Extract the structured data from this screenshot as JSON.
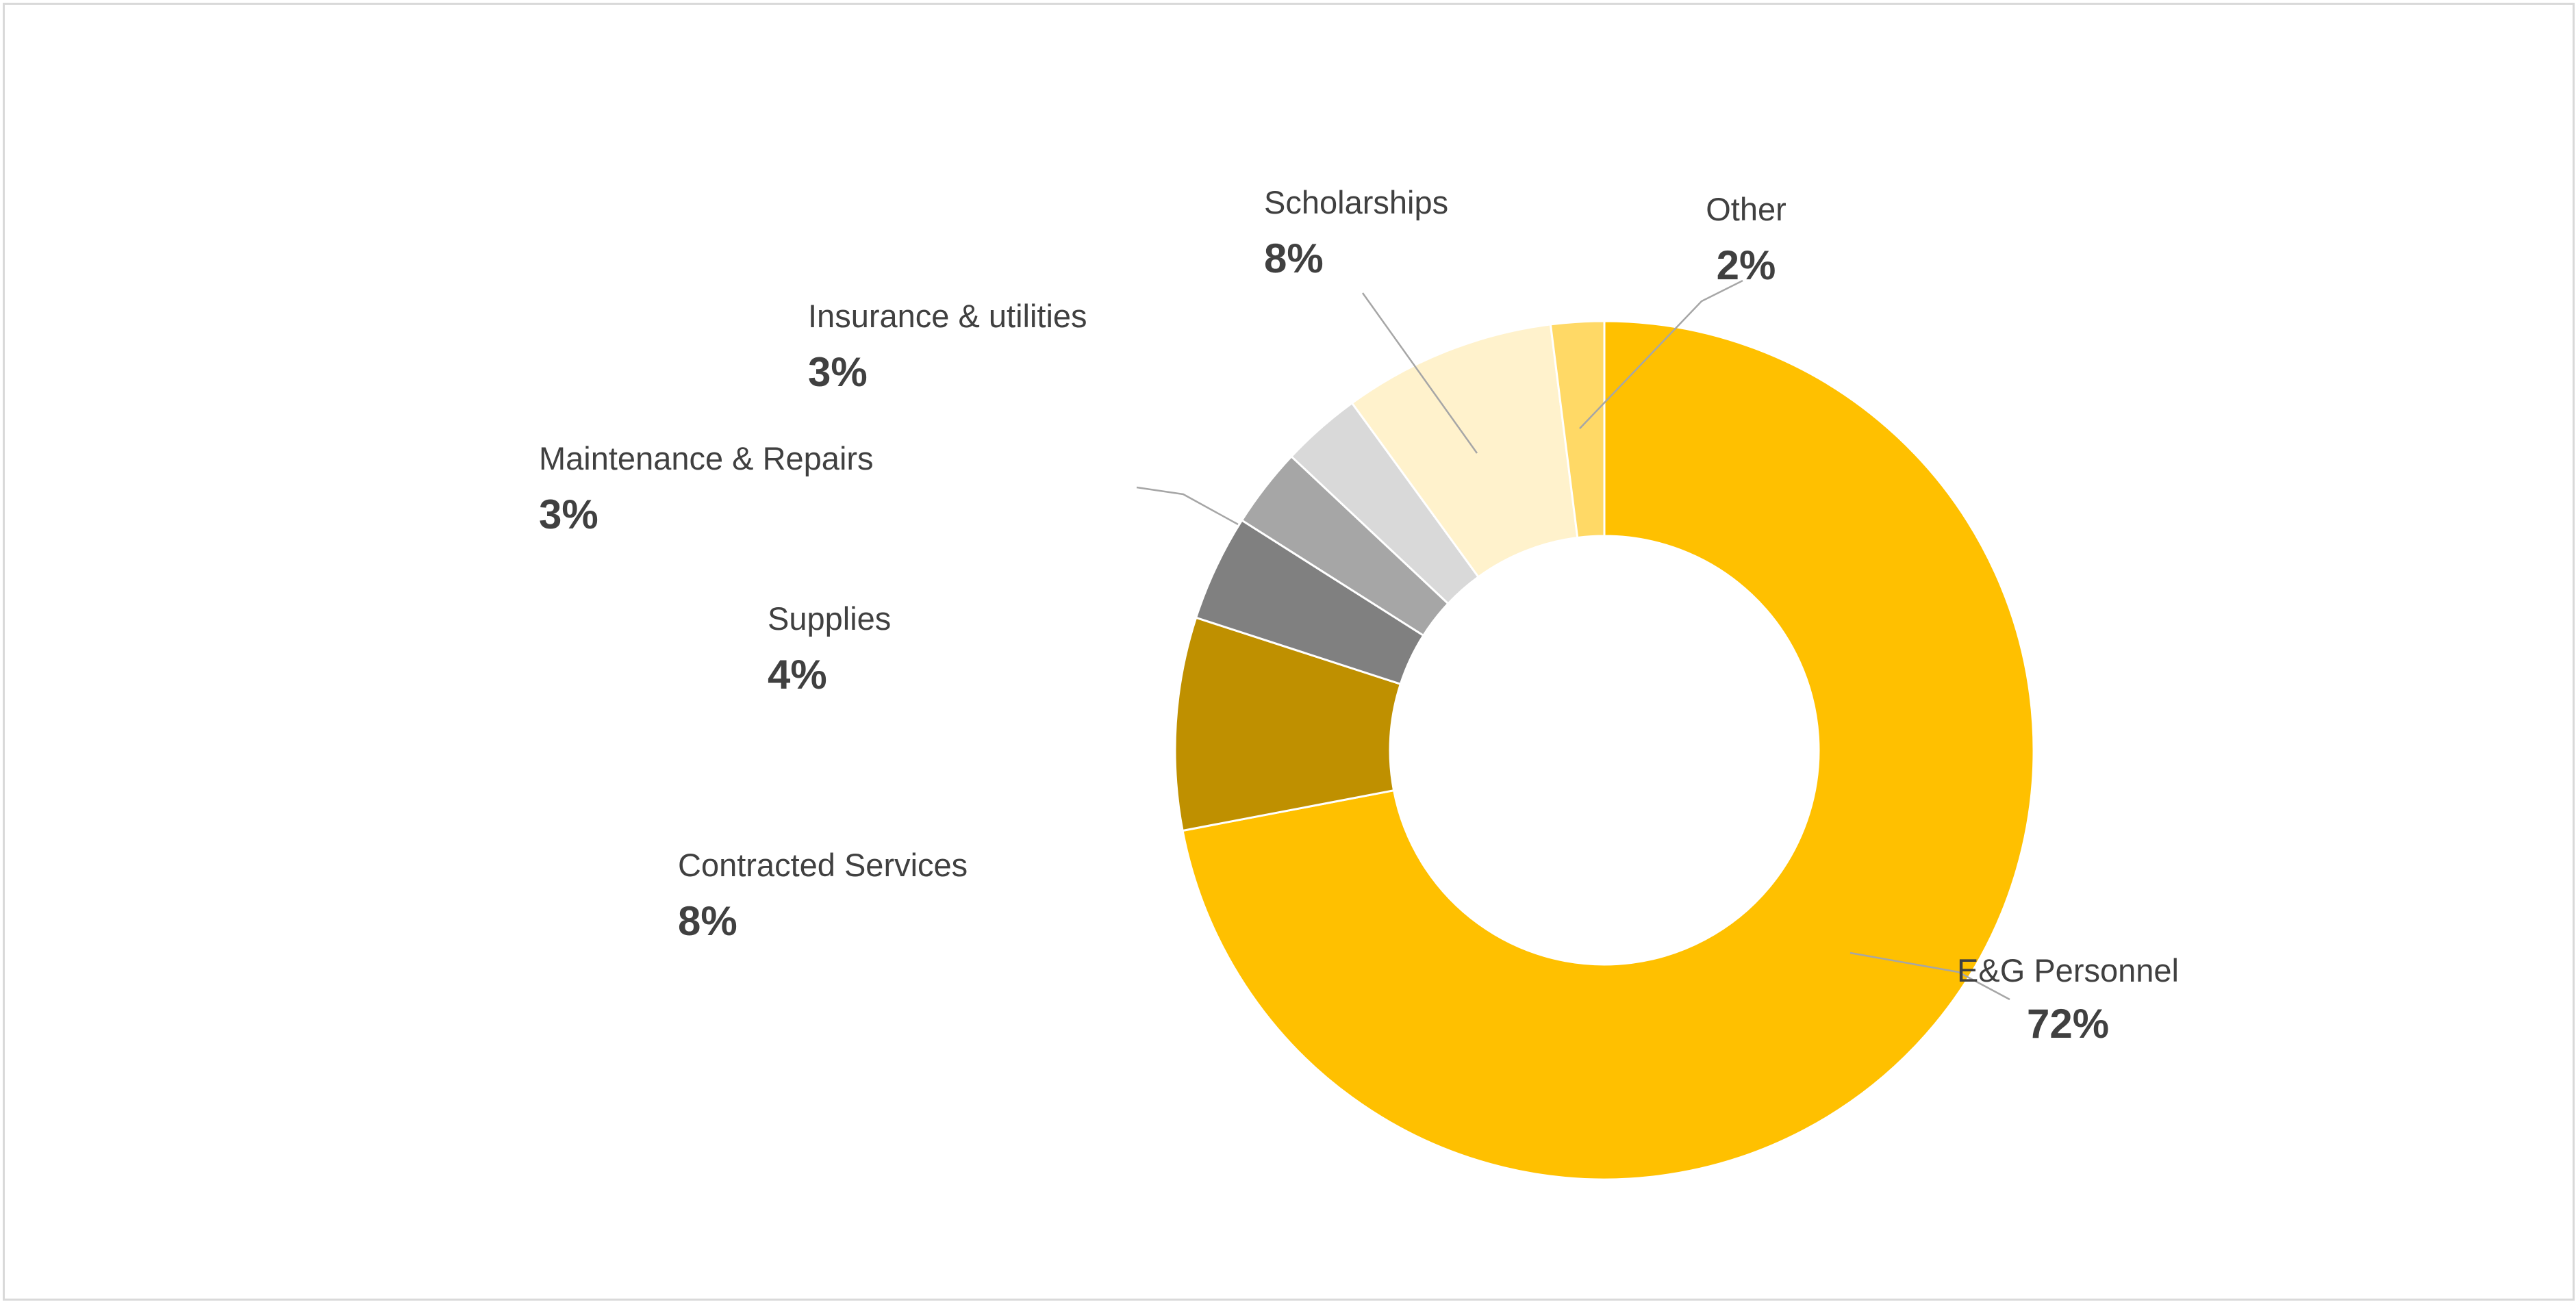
{
  "chart_data": {
    "type": "pie",
    "variant": "donut",
    "title": "",
    "legend": "none",
    "slices": [
      {
        "label": "E&G Personnel",
        "value": 72,
        "value_label": "72%",
        "color": "#FFC000"
      },
      {
        "label": "Contracted Services",
        "value": 8,
        "value_label": "8%",
        "color": "#BF9000"
      },
      {
        "label": "Supplies",
        "value": 4,
        "value_label": "4%",
        "color": "#808080"
      },
      {
        "label": "Maintenance & Repairs",
        "value": 3,
        "value_label": "3%",
        "color": "#A6A6A6"
      },
      {
        "label": "Insurance & utilities",
        "value": 3,
        "value_label": "3%",
        "color": "#D9D9D9"
      },
      {
        "label": "Scholarships",
        "value": 8,
        "value_label": "8%",
        "color": "#FFF2CC"
      },
      {
        "label": "Other",
        "value": 2,
        "value_label": "2%",
        "color": "#FFD966"
      }
    ]
  }
}
